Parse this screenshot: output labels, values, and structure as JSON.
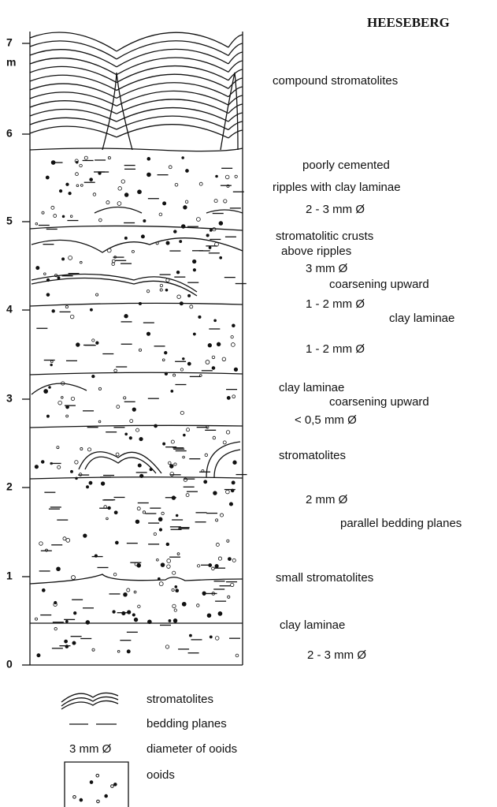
{
  "title": "HEESEBERG",
  "scale": {
    "ticks": [
      "7",
      "m",
      "6",
      "5",
      "4",
      "3",
      "2",
      "1",
      "0"
    ]
  },
  "annotations": [
    "compound stromatolites",
    "poorly cemented",
    "ripples with clay laminae",
    "2 - 3 mm Ø",
    "stromatolitic crusts",
    "above  ripples",
    "3 mm Ø",
    "coarsening upward",
    "1 - 2 mm Ø",
    "clay laminae",
    "1 - 2 mm Ø",
    "clay laminae",
    "coarsening upward",
    "< 0,5 mm Ø",
    "stromatolites",
    "2 mm Ø",
    "parallel bedding planes",
    "small stromatolites",
    "clay laminae",
    "2 - 3 mm Ø"
  ],
  "legend": {
    "items": [
      "stromatolites",
      "bedding planes",
      "diameter of ooids",
      "ooids"
    ],
    "sample": "3 mm Ø"
  }
}
